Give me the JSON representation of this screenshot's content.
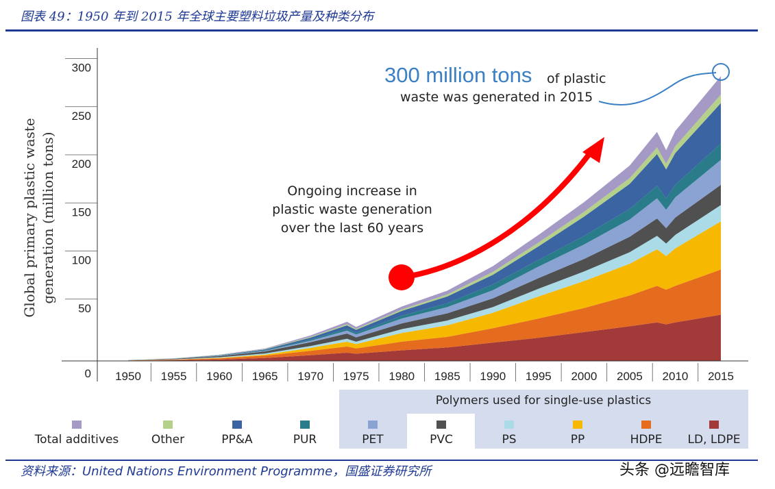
{
  "figure": {
    "title": "图表 49：1950 年到 2015 年全球主要塑料垃圾产量及种类分布",
    "source": "资料来源：United Nations Environment Programme，国盛证券研究所",
    "watermark": "头条 @远瞻智库"
  },
  "chart_data": {
    "type": "area",
    "ylabel": "Global primary plastic waste generation (million tons)",
    "xlabel": "",
    "x_ticks": [
      1950,
      1955,
      1960,
      1965,
      1970,
      1975,
      1980,
      1985,
      1990,
      1995,
      2000,
      2005,
      2010,
      2015
    ],
    "y_ticks": [
      0,
      50,
      100,
      150,
      200,
      250,
      300
    ],
    "ylim": [
      0,
      330
    ],
    "xlim": [
      1950,
      2015
    ],
    "grid": false,
    "stacked": true,
    "x": [
      1950,
      1955,
      1960,
      1965,
      1970,
      1974,
      1975,
      1980,
      1985,
      1990,
      1995,
      2000,
      2005,
      2008,
      2009,
      2010,
      2015
    ],
    "series": [
      {
        "name": "LD, LDPE",
        "color": "#a23a3a",
        "values": [
          0.3,
          0.8,
          1.5,
          3,
          6,
          8.5,
          7.5,
          11,
          14,
          19,
          24,
          30,
          36,
          40,
          38,
          40,
          48
        ]
      },
      {
        "name": "HDPE",
        "color": "#e56b1f",
        "values": [
          0.2,
          0.5,
          1.2,
          2.5,
          4.5,
          6.5,
          5.5,
          9,
          11,
          15,
          20,
          25,
          32,
          38,
          36,
          38,
          47
        ]
      },
      {
        "name": "PP",
        "color": "#f6b800",
        "values": [
          0,
          0.1,
          0.4,
          1,
          3,
          5,
          4.5,
          9,
          12,
          16,
          23,
          28,
          33,
          38,
          35,
          39,
          50
        ]
      },
      {
        "name": "PS",
        "color": "#aadbe6",
        "values": [
          0.1,
          0.3,
          0.7,
          1.2,
          2,
          3,
          2.5,
          4,
          5,
          6,
          8,
          10,
          12,
          14,
          13,
          14,
          17
        ]
      },
      {
        "name": "PVC",
        "color": "#505050",
        "values": [
          0.2,
          0.5,
          1.2,
          2.2,
          4,
          5.5,
          4.5,
          6,
          7.5,
          9,
          11,
          13,
          16,
          18,
          16,
          18,
          21
        ]
      },
      {
        "name": "PET",
        "color": "#8aa3d2",
        "values": [
          0,
          0.1,
          0.3,
          0.6,
          1.5,
          3,
          3,
          5,
          6.5,
          8.5,
          12,
          15,
          18,
          21,
          19,
          21,
          26
        ]
      },
      {
        "name": "PUR",
        "color": "#2a7c8a",
        "values": [
          0,
          0.1,
          0.3,
          0.6,
          1.2,
          2,
          1.8,
          3,
          4,
          6,
          7,
          9,
          11,
          13,
          12,
          13,
          17
        ]
      },
      {
        "name": "PP&A",
        "color": "#3b64a3",
        "values": [
          0,
          0.1,
          0.4,
          0.8,
          2,
          3.5,
          3,
          5,
          7,
          10,
          14,
          20,
          26,
          33,
          30,
          33,
          42
        ]
      },
      {
        "name": "Other",
        "color": "#b4d08a",
        "values": [
          0,
          0.1,
          0.2,
          0.4,
          0.8,
          1.2,
          1,
          1.5,
          2,
          3,
          4,
          5,
          6,
          7,
          6,
          7,
          9
        ]
      },
      {
        "name": "Total additives",
        "color": "#a59ac6",
        "values": [
          0,
          0.1,
          0.3,
          0.6,
          1.5,
          2.5,
          2,
          3,
          4,
          6,
          8,
          10,
          13,
          16,
          14,
          16,
          19
        ]
      }
    ],
    "legend": {
      "placement": "bottom",
      "group_header": "Polymers used for single-use plastics",
      "items": [
        {
          "label": "Total additives",
          "color": "#a59ac6",
          "single_use": false
        },
        {
          "label": "Other",
          "color": "#b4d08a",
          "single_use": false
        },
        {
          "label": "PP&A",
          "color": "#3b64a3",
          "single_use": false
        },
        {
          "label": "PUR",
          "color": "#2a7c8a",
          "single_use": false
        },
        {
          "label": "PET",
          "color": "#8aa3d2",
          "single_use": true
        },
        {
          "label": "PVC",
          "color": "#505050",
          "single_use": true
        },
        {
          "label": "PS",
          "color": "#aadbe6",
          "single_use": true
        },
        {
          "label": "PP",
          "color": "#f6b800",
          "single_use": true
        },
        {
          "label": "HDPE",
          "color": "#e56b1f",
          "single_use": true
        },
        {
          "label": "LD, LDPE",
          "color": "#a23a3a",
          "single_use": true
        }
      ]
    },
    "annotations": {
      "callout_big": "300 million tons",
      "callout_rest1": "of plastic",
      "callout_rest2": "waste was generated in 2015",
      "trend_line1": "Ongoing increase in",
      "trend_line2": "plastic waste generation",
      "trend_line3": "over the last 60 years"
    },
    "colors": {
      "axis": "#333333",
      "callout": "#3b7fc4",
      "arrow": "#ff0000",
      "legend_band": "#d5dced"
    }
  }
}
